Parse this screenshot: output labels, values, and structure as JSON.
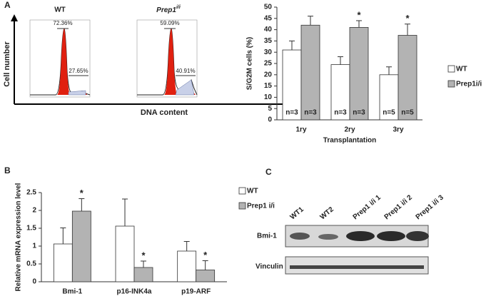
{
  "panel_letters": [
    "A",
    "B",
    "C"
  ],
  "flow": {
    "titles": [
      {
        "text": "WT"
      },
      {
        "text": "Prep1",
        "sup": "i/i"
      }
    ],
    "percents": [
      [
        "72.36%",
        "27.65%"
      ],
      [
        "59.09%",
        "40.91%"
      ]
    ],
    "y_label": "Cell number",
    "x_label": "DNA content"
  },
  "blot": {
    "lanes": [
      "WT1",
      "WT2",
      "Prep1 i/i 1",
      "Prep1 i/i 2",
      "Prep1 i/i 3"
    ],
    "rows": [
      "Bmi-1",
      "Vinculin"
    ]
  },
  "chart_data": [
    {
      "type": "bar",
      "y_label": "S/G2M cells (%)",
      "x_label": "Transplantation",
      "categories": [
        "1ry",
        "2ry",
        "3ry"
      ],
      "series": [
        {
          "name": "WT",
          "color": "#ffffff",
          "values": [
            31,
            24.5,
            20
          ],
          "errors": [
            4,
            3.5,
            3.5
          ],
          "n_labels": [
            "n=3",
            "n=3",
            "n=5"
          ],
          "significance": [
            null,
            null,
            null
          ]
        },
        {
          "name": "Prep1i/i",
          "color": "#b3b3b3",
          "values": [
            42,
            41,
            37.5
          ],
          "errors": [
            4,
            3,
            5
          ],
          "n_labels": [
            "n=3",
            "n=3",
            "n=5"
          ],
          "significance": [
            null,
            "*",
            "*"
          ]
        }
      ],
      "ylim": [
        0,
        50
      ],
      "yticks": [
        0,
        5,
        10,
        15,
        20,
        25,
        30,
        35,
        40,
        45,
        50
      ]
    },
    {
      "type": "bar",
      "y_label": "Relative mRNA expression level",
      "categories": [
        "Bmi-1",
        "p16-INK4a",
        "p19-ARF"
      ],
      "series": [
        {
          "name": "WT",
          "color": "#ffffff",
          "values": [
            1.06,
            1.56,
            0.86
          ],
          "errors": [
            0.45,
            0.76,
            0.27
          ],
          "significance": [
            null,
            null,
            null
          ]
        },
        {
          "name": "Prep1 i/i",
          "color": "#b3b3b3",
          "values": [
            1.98,
            0.4,
            0.33
          ],
          "errors": [
            0.35,
            0.18,
            0.26
          ],
          "significance": [
            "*",
            "*",
            "*"
          ]
        }
      ],
      "ylim": [
        0,
        2.5
      ],
      "yticks": [
        0,
        0.5,
        1,
        1.5,
        2,
        2.5
      ]
    }
  ]
}
